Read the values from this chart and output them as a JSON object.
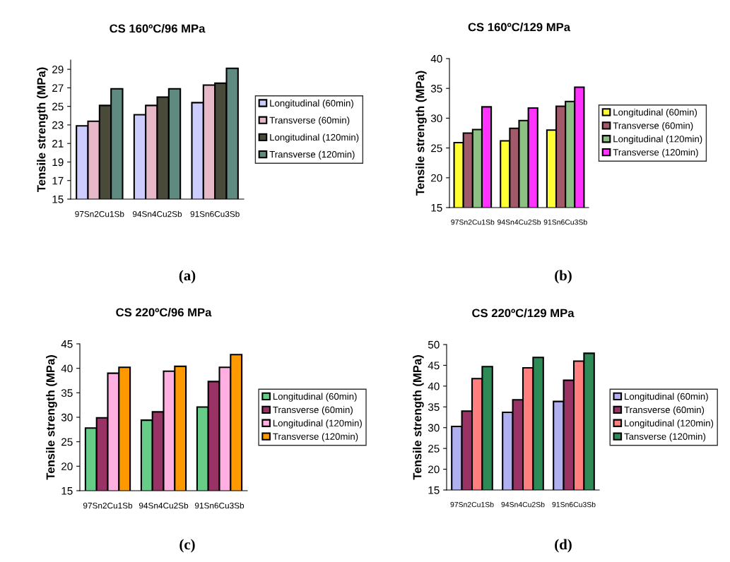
{
  "chart_data": [
    {
      "type": "bar",
      "title": "CS 160ºC/96 MPa",
      "ylabel": "Tensile strength (MPa)",
      "categories": [
        "97Sn2Cu1Sb",
        "94Sn4Cu2Sb",
        "91Sn6Cu3Sb"
      ],
      "ylim": [
        15,
        30
      ],
      "yticks": [
        15,
        17,
        19,
        21,
        23,
        25,
        27,
        29
      ],
      "grid": false,
      "legend": "right",
      "annotations": [
        "(a)"
      ],
      "series": [
        {
          "name": "Longitudinal (60min)",
          "color": "#ccccff",
          "values": [
            22.9,
            24.1,
            25.4
          ]
        },
        {
          "name": "Transverse (60min)",
          "color": "#e6b8c8",
          "values": [
            23.4,
            25.1,
            27.3
          ]
        },
        {
          "name": "Longitudinal (120min)",
          "color": "#4a4a3a",
          "values": [
            25.1,
            26.0,
            27.5
          ]
        },
        {
          "name": "Transverse (120min)",
          "color": "#5f8a80",
          "values": [
            26.9,
            26.9,
            29.1
          ]
        }
      ]
    },
    {
      "type": "bar",
      "title": "CS 160ºC/129 MPa",
      "ylabel": "Tensile strength (MPa)",
      "categories": [
        "97Sn2Cu1Sb",
        "94Sn4Cu2Sb",
        "91Sn6Cu3Sb"
      ],
      "ylim": [
        15,
        40
      ],
      "yticks": [
        15,
        20,
        25,
        30,
        35,
        40
      ],
      "grid": false,
      "legend": "right",
      "annotations": [
        "(b)"
      ],
      "series": [
        {
          "name": "Longitudinal (60min)",
          "color": "#ffff33",
          "values": [
            25.9,
            26.2,
            28.0
          ]
        },
        {
          "name": "Transverse (60min)",
          "color": "#a05a6a",
          "values": [
            27.5,
            28.3,
            32.0
          ]
        },
        {
          "name": "Longitudinal (120min)",
          "color": "#8cc084",
          "values": [
            28.1,
            29.6,
            32.8
          ]
        },
        {
          "name": "Transverse (120min)",
          "color": "#ff33ff",
          "values": [
            31.9,
            31.7,
            35.2
          ]
        }
      ]
    },
    {
      "type": "bar",
      "title": "CS 220ºC/96 MPa",
      "ylabel": "Tensile strength (MPa)",
      "categories": [
        "97Sn2Cu1Sb",
        "94Sn4Cu2Sb",
        "91Sn6Cu3Sb"
      ],
      "ylim": [
        15,
        45
      ],
      "yticks": [
        15,
        20,
        25,
        30,
        35,
        40,
        45
      ],
      "grid": false,
      "legend": "right",
      "annotations": [
        "(c)"
      ],
      "series": [
        {
          "name": "Longitudinal (60min)",
          "color": "#66cc88",
          "values": [
            27.8,
            29.4,
            32.1
          ]
        },
        {
          "name": "Transverse (60min)",
          "color": "#993366",
          "values": [
            29.9,
            31.1,
            37.3
          ]
        },
        {
          "name": "Longitudinal (120min)",
          "color": "#ffb0e0",
          "values": [
            39.0,
            39.4,
            40.2
          ]
        },
        {
          "name": "Transverse (120min)",
          "color": "#ff9900",
          "values": [
            40.2,
            40.4,
            42.8
          ]
        }
      ]
    },
    {
      "type": "bar",
      "title": "CS 220ºC/129 MPa",
      "ylabel": "Tensile strength (MPa)",
      "categories": [
        "97Sn2Cu1Sb",
        "94Sn4Cu2Sb",
        "91Sn6Cu3Sb"
      ],
      "ylim": [
        15,
        50
      ],
      "yticks": [
        15,
        20,
        25,
        30,
        35,
        40,
        45,
        50
      ],
      "grid": false,
      "legend": "right",
      "annotations": [
        "(d)"
      ],
      "series": [
        {
          "name": "Longitudinal (60min)",
          "color": "#b0b0f0",
          "values": [
            30.3,
            33.7,
            36.3
          ]
        },
        {
          "name": "Transverse (60min)",
          "color": "#993366",
          "values": [
            34.0,
            36.7,
            41.4
          ]
        },
        {
          "name": "Longitudinal (120min)",
          "color": "#ff7f7f",
          "values": [
            41.8,
            44.4,
            46.0
          ]
        },
        {
          "name": "Tansverse (120min)",
          "color": "#2e8b57",
          "values": [
            44.7,
            46.9,
            47.9
          ]
        }
      ]
    }
  ]
}
